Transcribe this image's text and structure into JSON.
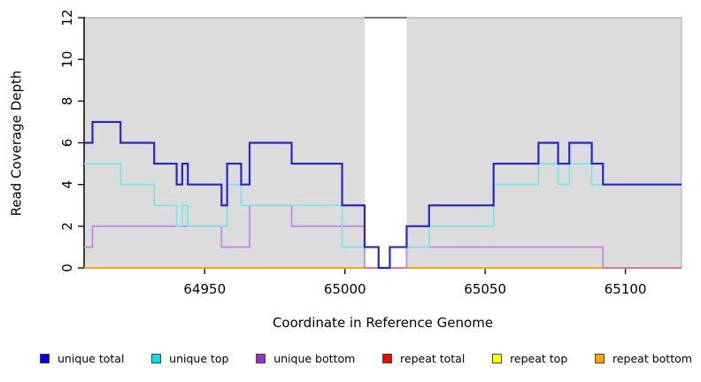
{
  "chart_data": {
    "type": "line",
    "subtype": "step-coverage",
    "title": "",
    "xlabel": "Coordinate in Reference Genome",
    "ylabel": "Read Coverage Depth",
    "xlim": [
      64907,
      65120
    ],
    "ylim": [
      0,
      12
    ],
    "xticks": [
      64950,
      65000,
      65050,
      65100
    ],
    "yticks": [
      0,
      2,
      4,
      6,
      8,
      10,
      12
    ],
    "grid": "off",
    "plot_bg": "#dcdcdc",
    "gap_band": {
      "from": 65007,
      "to": 65022,
      "color": "#ffffff"
    },
    "legend_position": "bottom",
    "series": [
      {
        "name": "unique total",
        "color": "#2626d0",
        "legend_color": "#0000e6",
        "steps": [
          [
            64907,
            6
          ],
          [
            64910,
            7
          ],
          [
            64920,
            6
          ],
          [
            64932,
            5
          ],
          [
            64940,
            4
          ],
          [
            64942,
            5
          ],
          [
            64944,
            4
          ],
          [
            64956,
            3
          ],
          [
            64958,
            5
          ],
          [
            64963,
            4
          ],
          [
            64966,
            6
          ],
          [
            64981,
            5
          ],
          [
            64999,
            3
          ],
          [
            65007,
            1
          ],
          [
            65012,
            0
          ],
          [
            65016,
            1
          ],
          [
            65022,
            2
          ],
          [
            65030,
            3
          ],
          [
            65053,
            5
          ],
          [
            65069,
            6
          ],
          [
            65076,
            5
          ],
          [
            65080,
            6
          ],
          [
            65088,
            5
          ],
          [
            65092,
            4
          ]
        ]
      },
      {
        "name": "unique top",
        "color": "#79e8e8",
        "legend_color": "#00e0ee",
        "steps": [
          [
            64907,
            5
          ],
          [
            64920,
            4
          ],
          [
            64932,
            3
          ],
          [
            64940,
            2
          ],
          [
            64942,
            3
          ],
          [
            64944,
            2
          ],
          [
            64958,
            4
          ],
          [
            64963,
            3
          ],
          [
            64999,
            1
          ],
          [
            65012,
            0
          ],
          [
            65016,
            1
          ],
          [
            65030,
            2
          ],
          [
            65053,
            4
          ],
          [
            65069,
            5
          ],
          [
            65076,
            4
          ],
          [
            65080,
            5
          ],
          [
            65088,
            4
          ]
        ]
      },
      {
        "name": "unique bottom",
        "color": "#c488e6",
        "legend_color": "#9932cc",
        "zero_color": "#db7093",
        "steps": [
          [
            64907,
            1
          ],
          [
            64910,
            2
          ],
          [
            64956,
            1
          ],
          [
            64966,
            3
          ],
          [
            64981,
            2
          ],
          [
            65007,
            0
          ],
          [
            65022,
            1
          ],
          [
            65092,
            0
          ]
        ]
      },
      {
        "name": "repeat total",
        "color": "#ff0000",
        "legend_color": "#ff0000",
        "steps": [
          [
            64907,
            0
          ]
        ]
      },
      {
        "name": "repeat top",
        "color": "#ffff00",
        "legend_color": "#ffff00",
        "steps": [
          [
            64907,
            0
          ]
        ]
      },
      {
        "name": "repeat bottom",
        "color": "#ffa500",
        "legend_color": "#ffa500",
        "steps": [
          [
            64907,
            0
          ]
        ]
      }
    ]
  }
}
